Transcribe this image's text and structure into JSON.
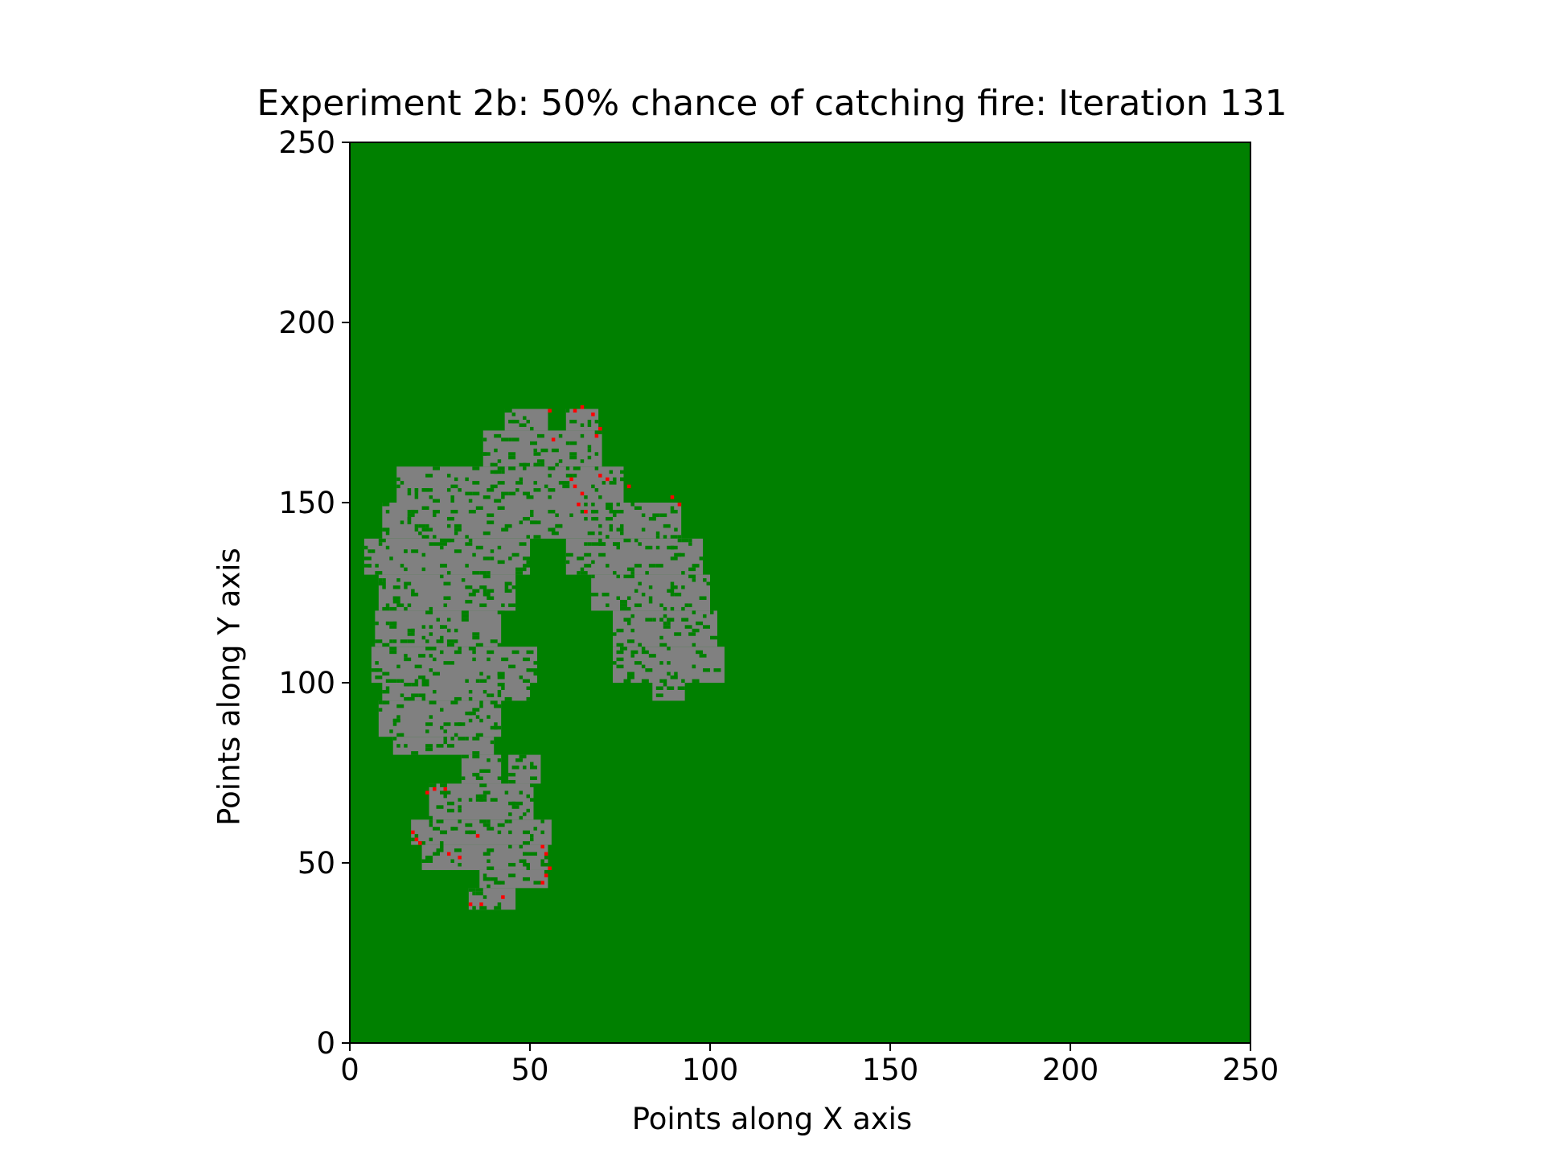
{
  "chart_data": {
    "type": "heatmap",
    "title": "Experiment 2b: 50% chance of catching fire: Iteration 131",
    "xlabel": "Points along X axis",
    "ylabel": "Points along Y axis",
    "xlim": [
      0,
      250
    ],
    "ylim": [
      0,
      250
    ],
    "xticks": [
      "0",
      "50",
      "100",
      "150",
      "200",
      "250"
    ],
    "yticks": [
      "0",
      "50",
      "100",
      "150",
      "200",
      "250"
    ],
    "grid": false,
    "legend": "none",
    "colors": {
      "unburnt_tree": "#008000",
      "burnt": "#808080",
      "burning": "#ff0000"
    },
    "burnt_cells_by_row": [
      {
        "y": [
          170,
          176
        ],
        "x": [
          [
            43,
            55
          ],
          [
            60,
            69
          ]
        ]
      },
      {
        "y": [
          160,
          170
        ],
        "x": [
          [
            37,
            70
          ]
        ]
      },
      {
        "y": [
          150,
          160
        ],
        "x": [
          [
            13,
            76
          ]
        ]
      },
      {
        "y": [
          140,
          150
        ],
        "x": [
          [
            9,
            92
          ]
        ]
      },
      {
        "y": [
          130,
          140
        ],
        "x": [
          [
            4,
            50
          ],
          [
            60,
            98
          ]
        ]
      },
      {
        "y": [
          120,
          130
        ],
        "x": [
          [
            8,
            46
          ],
          [
            67,
            100
          ]
        ]
      },
      {
        "y": [
          110,
          120
        ],
        "x": [
          [
            7,
            42
          ],
          [
            73,
            102
          ]
        ]
      },
      {
        "y": [
          100,
          110
        ],
        "x": [
          [
            6,
            52
          ],
          [
            73,
            104
          ]
        ]
      },
      {
        "y": [
          95,
          100
        ],
        "x": [
          [
            9,
            50
          ],
          [
            84,
            93
          ]
        ]
      },
      {
        "y": [
          85,
          95
        ],
        "x": [
          [
            8,
            42
          ]
        ]
      },
      {
        "y": [
          80,
          85
        ],
        "x": [
          [
            12,
            40
          ]
        ]
      },
      {
        "y": [
          72,
          80
        ],
        "x": [
          [
            31,
            42
          ],
          [
            44,
            53
          ]
        ]
      },
      {
        "y": [
          62,
          72
        ],
        "x": [
          [
            22,
            51
          ]
        ]
      },
      {
        "y": [
          55,
          62
        ],
        "x": [
          [
            17,
            56
          ]
        ]
      },
      {
        "y": [
          48,
          55
        ],
        "x": [
          [
            20,
            55
          ]
        ]
      },
      {
        "y": [
          43,
          48
        ],
        "x": [
          [
            36,
            55
          ]
        ]
      },
      {
        "y": [
          37,
          43
        ],
        "x": [
          [
            33,
            46
          ]
        ]
      }
    ],
    "burning_cells": [
      [
        55,
        175
      ],
      [
        56,
        167
      ],
      [
        62,
        175
      ],
      [
        64,
        176
      ],
      [
        67,
        174
      ],
      [
        69,
        170
      ],
      [
        68,
        168
      ],
      [
        62,
        154
      ],
      [
        64,
        152
      ],
      [
        61,
        156
      ],
      [
        63,
        149
      ],
      [
        65,
        147
      ],
      [
        69,
        157
      ],
      [
        71,
        156
      ],
      [
        77,
        154
      ],
      [
        89,
        151
      ],
      [
        91,
        149
      ],
      [
        17,
        58
      ],
      [
        18,
        56
      ],
      [
        19,
        55
      ],
      [
        21,
        69
      ],
      [
        23,
        70
      ],
      [
        26,
        70
      ],
      [
        27,
        52
      ],
      [
        30,
        51
      ],
      [
        35,
        57
      ],
      [
        33,
        38
      ],
      [
        36,
        38
      ],
      [
        42,
        40
      ],
      [
        53,
        54
      ],
      [
        54,
        52
      ],
      [
        55,
        48
      ],
      [
        54,
        46
      ],
      [
        53,
        44
      ]
    ]
  }
}
